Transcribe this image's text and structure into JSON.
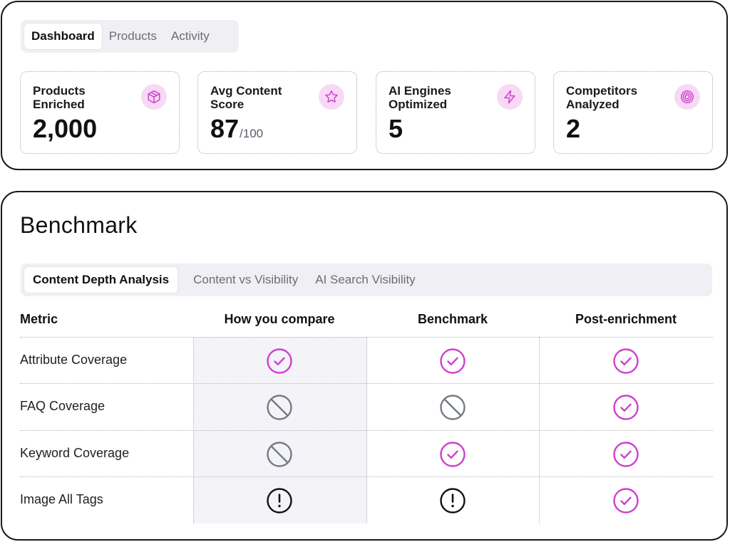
{
  "top_tabs": [
    {
      "label": "Dashboard",
      "active": true
    },
    {
      "label": "Products",
      "active": false
    },
    {
      "label": "Activity",
      "active": false
    }
  ],
  "stats": [
    {
      "label": "Products Enriched",
      "value": "2,000",
      "suffix": "",
      "icon": "package-icon"
    },
    {
      "label": "Avg Content Score",
      "value": "87",
      "suffix": "/100",
      "icon": "star-icon"
    },
    {
      "label": "AI Engines Optimized",
      "value": "5",
      "suffix": "",
      "icon": "lightning-icon"
    },
    {
      "label": "Competitors Analyzed",
      "value": "2",
      "suffix": "",
      "icon": "target-icon"
    }
  ],
  "benchmark": {
    "title": "Benchmark",
    "tabs": [
      {
        "label": "Content Depth Analysis",
        "active": true
      },
      {
        "label": "Content vs Visibility",
        "active": false
      },
      {
        "label": "AI Search Visibility",
        "active": false
      }
    ],
    "columns": [
      "Metric",
      "How you compare",
      "Benchmark",
      "Post-enrichment"
    ],
    "rows": [
      {
        "metric": "Attribute Coverage",
        "status": [
          "check",
          "check",
          "check"
        ]
      },
      {
        "metric": "FAQ Coverage",
        "status": [
          "none",
          "none",
          "check"
        ]
      },
      {
        "metric": "Keyword Coverage",
        "status": [
          "none",
          "check",
          "check"
        ]
      },
      {
        "metric": "Image All Tags",
        "status": [
          "alert",
          "alert",
          "check"
        ]
      }
    ]
  },
  "colors": {
    "accent": "#cf3fce",
    "accent_soft": "#f8d9f5",
    "muted_icon": "#737b85",
    "alert_icon": "#111113",
    "highlight_column": "#f3f3f8"
  }
}
